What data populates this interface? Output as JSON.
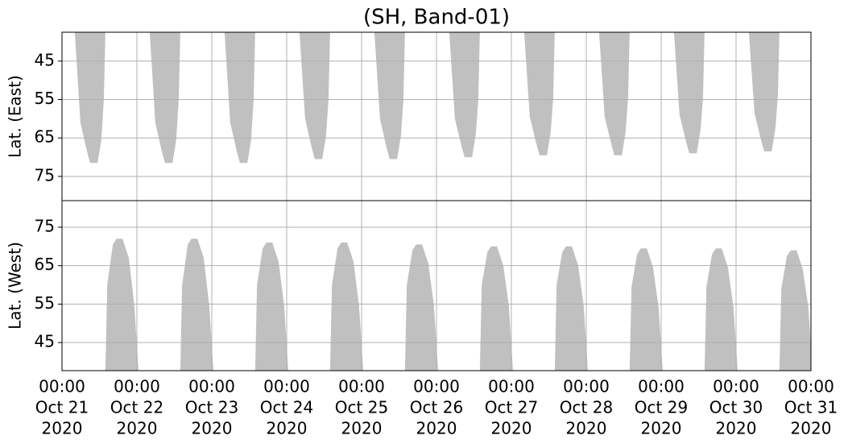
{
  "chart_data": [
    {
      "type": "polygon",
      "title": "(SH, Band-01)",
      "ylabel": "Lat. (East)",
      "y_inverted": true,
      "grid": true,
      "xlim": [
        "2020-10-21T00:00",
        "2020-10-31T00:00"
      ],
      "xticks": [
        "2020-10-21T00:00",
        "2020-10-22T00:00",
        "2020-10-23T00:00",
        "2020-10-24T00:00",
        "2020-10-25T00:00",
        "2020-10-26T00:00",
        "2020-10-27T00:00",
        "2020-10-28T00:00",
        "2020-10-29T00:00",
        "2020-10-30T00:00",
        "2020-10-31T00:00"
      ],
      "ylim": [
        37.5,
        81.3
      ],
      "yticks": [
        45,
        55,
        65,
        75
      ],
      "series": [
        {
          "color": "#c0c0c0",
          "x": [
            "2020-10-21T04:06",
            "2020-10-21T05:54",
            "2020-10-21T08:00",
            "2020-10-21T09:00",
            "2020-10-21T11:24",
            "2020-10-21T12:36",
            "2020-10-21T13:24",
            "2020-10-21T13:54"
          ],
          "values": [
            37.5,
            61,
            68.5,
            71.5,
            71.5,
            65.5,
            55,
            37.5
          ]
        },
        {
          "color": "#c0c0c0",
          "x": [
            "2020-10-22T04:06",
            "2020-10-22T05:54",
            "2020-10-22T08:00",
            "2020-10-22T09:00",
            "2020-10-22T11:24",
            "2020-10-22T12:36",
            "2020-10-22T13:24",
            "2020-10-22T13:54"
          ],
          "values": [
            37.5,
            61,
            68.5,
            71.5,
            71.5,
            65.5,
            55,
            37.5
          ]
        },
        {
          "color": "#c0c0c0",
          "x": [
            "2020-10-23T04:06",
            "2020-10-23T05:54",
            "2020-10-23T08:00",
            "2020-10-23T09:00",
            "2020-10-23T11:24",
            "2020-10-23T12:36",
            "2020-10-23T13:24",
            "2020-10-23T13:54"
          ],
          "values": [
            37.5,
            61,
            68.5,
            71.5,
            71.5,
            65.5,
            55,
            37.5
          ]
        },
        {
          "color": "#c0c0c0",
          "x": [
            "2020-10-24T04:06",
            "2020-10-24T05:54",
            "2020-10-24T08:00",
            "2020-10-24T09:00",
            "2020-10-24T11:24",
            "2020-10-24T12:36",
            "2020-10-24T13:24",
            "2020-10-24T13:54"
          ],
          "values": [
            37.5,
            60,
            67.5,
            70.5,
            70.5,
            64.5,
            55,
            37.5
          ]
        },
        {
          "color": "#c0c0c0",
          "x": [
            "2020-10-25T04:06",
            "2020-10-25T05:54",
            "2020-10-25T08:00",
            "2020-10-25T09:00",
            "2020-10-25T11:24",
            "2020-10-25T12:36",
            "2020-10-25T13:24",
            "2020-10-25T13:54"
          ],
          "values": [
            37.5,
            60,
            67.5,
            70.5,
            70.5,
            64.5,
            55,
            37.5
          ]
        },
        {
          "color": "#c0c0c0",
          "x": [
            "2020-10-26T04:06",
            "2020-10-26T05:54",
            "2020-10-26T08:00",
            "2020-10-26T09:00",
            "2020-10-26T11:24",
            "2020-10-26T12:36",
            "2020-10-26T13:24",
            "2020-10-26T13:54"
          ],
          "values": [
            37.5,
            60,
            67,
            70,
            70,
            64,
            55,
            37.5
          ]
        },
        {
          "color": "#c0c0c0",
          "x": [
            "2020-10-27T04:06",
            "2020-10-27T05:54",
            "2020-10-27T08:00",
            "2020-10-27T09:00",
            "2020-10-27T11:24",
            "2020-10-27T12:36",
            "2020-10-27T13:24",
            "2020-10-27T13:54"
          ],
          "values": [
            37.5,
            59.5,
            66.5,
            69.5,
            69.5,
            63.5,
            54.5,
            37.5
          ]
        },
        {
          "color": "#c0c0c0",
          "x": [
            "2020-10-28T04:06",
            "2020-10-28T05:54",
            "2020-10-28T08:00",
            "2020-10-28T09:00",
            "2020-10-28T11:24",
            "2020-10-28T12:36",
            "2020-10-28T13:24",
            "2020-10-28T13:54"
          ],
          "values": [
            37.5,
            59.5,
            66.5,
            69.5,
            69.5,
            63.5,
            54.5,
            37.5
          ]
        },
        {
          "color": "#c0c0c0",
          "x": [
            "2020-10-29T04:06",
            "2020-10-29T05:54",
            "2020-10-29T08:00",
            "2020-10-29T09:00",
            "2020-10-29T11:24",
            "2020-10-29T12:36",
            "2020-10-29T13:24",
            "2020-10-29T13:54"
          ],
          "values": [
            37.5,
            59,
            66,
            69,
            69,
            63,
            54.5,
            37.5
          ]
        },
        {
          "color": "#c0c0c0",
          "x": [
            "2020-10-30T04:06",
            "2020-10-30T05:54",
            "2020-10-30T08:00",
            "2020-10-30T09:00",
            "2020-10-30T11:24",
            "2020-10-30T12:36",
            "2020-10-30T13:24",
            "2020-10-30T13:54"
          ],
          "values": [
            37.5,
            58.5,
            65.5,
            68.5,
            68.5,
            62.5,
            54,
            37.5
          ]
        }
      ]
    },
    {
      "type": "polygon",
      "ylabel": "Lat. (West)",
      "y_inverted": false,
      "grid": true,
      "xlim": [
        "2020-10-21T00:00",
        "2020-10-31T00:00"
      ],
      "xticks": [
        {
          "value": "2020-10-21T00:00",
          "label": [
            "00:00",
            "Oct 21",
            "2020"
          ]
        },
        {
          "value": "2020-10-22T00:00",
          "label": [
            "00:00",
            "Oct 22",
            "2020"
          ]
        },
        {
          "value": "2020-10-23T00:00",
          "label": [
            "00:00",
            "Oct 23",
            "2020"
          ]
        },
        {
          "value": "2020-10-24T00:00",
          "label": [
            "00:00",
            "Oct 24",
            "2020"
          ]
        },
        {
          "value": "2020-10-25T00:00",
          "label": [
            "00:00",
            "Oct 25",
            "2020"
          ]
        },
        {
          "value": "2020-10-26T00:00",
          "label": [
            "00:00",
            "Oct 26",
            "2020"
          ]
        },
        {
          "value": "2020-10-27T00:00",
          "label": [
            "00:00",
            "Oct 27",
            "2020"
          ]
        },
        {
          "value": "2020-10-28T00:00",
          "label": [
            "00:00",
            "Oct 28",
            "2020"
          ]
        },
        {
          "value": "2020-10-29T00:00",
          "label": [
            "00:00",
            "Oct 29",
            "2020"
          ]
        },
        {
          "value": "2020-10-30T00:00",
          "label": [
            "00:00",
            "Oct 30",
            "2020"
          ]
        },
        {
          "value": "2020-10-31T00:00",
          "label": [
            "00:00",
            "Oct 31",
            "2020"
          ]
        }
      ],
      "ylim": [
        37.7,
        81.9
      ],
      "yticks": [
        45,
        55,
        65,
        75
      ],
      "series": [
        {
          "color": "#c0c0c0",
          "x": [
            "2020-10-21T13:54",
            "2020-10-21T14:30",
            "2020-10-21T16:18",
            "2020-10-21T17:30",
            "2020-10-21T19:24",
            "2020-10-21T21:24",
            "2020-10-21T23:12",
            "2020-10-22T00:30"
          ],
          "values": [
            37.7,
            60,
            70.5,
            72,
            72,
            67,
            54.5,
            37.7
          ]
        },
        {
          "color": "#c0c0c0",
          "x": [
            "2020-10-22T13:54",
            "2020-10-22T14:30",
            "2020-10-22T16:18",
            "2020-10-22T17:30",
            "2020-10-22T19:24",
            "2020-10-22T21:24",
            "2020-10-22T23:12",
            "2020-10-23T00:30"
          ],
          "values": [
            37.7,
            60,
            70.5,
            72,
            72,
            67,
            54.5,
            37.7
          ]
        },
        {
          "color": "#c0c0c0",
          "x": [
            "2020-10-23T13:54",
            "2020-10-23T14:30",
            "2020-10-23T16:18",
            "2020-10-23T17:30",
            "2020-10-23T19:24",
            "2020-10-23T21:24",
            "2020-10-23T23:12",
            "2020-10-24T00:30"
          ],
          "values": [
            37.7,
            60,
            69.5,
            71,
            71,
            66,
            54.5,
            37.7
          ]
        },
        {
          "color": "#c0c0c0",
          "x": [
            "2020-10-24T13:54",
            "2020-10-24T14:30",
            "2020-10-24T16:18",
            "2020-10-24T17:30",
            "2020-10-24T19:24",
            "2020-10-24T21:24",
            "2020-10-24T23:12",
            "2020-10-25T00:30"
          ],
          "values": [
            37.7,
            60,
            69.5,
            71,
            71,
            66,
            54.5,
            37.7
          ]
        },
        {
          "color": "#c0c0c0",
          "x": [
            "2020-10-25T13:54",
            "2020-10-25T14:30",
            "2020-10-25T16:18",
            "2020-10-25T17:30",
            "2020-10-25T19:24",
            "2020-10-25T21:24",
            "2020-10-25T23:12",
            "2020-10-26T00:30"
          ],
          "values": [
            37.7,
            60,
            69,
            70.5,
            70.5,
            65.5,
            54.5,
            37.7
          ]
        },
        {
          "color": "#c0c0c0",
          "x": [
            "2020-10-26T13:54",
            "2020-10-26T14:30",
            "2020-10-26T16:18",
            "2020-10-26T17:30",
            "2020-10-26T19:24",
            "2020-10-26T21:24",
            "2020-10-26T23:12",
            "2020-10-27T00:30"
          ],
          "values": [
            37.7,
            60,
            68.5,
            70,
            70,
            65,
            54.5,
            37.7
          ]
        },
        {
          "color": "#c0c0c0",
          "x": [
            "2020-10-27T13:54",
            "2020-10-27T14:30",
            "2020-10-27T16:18",
            "2020-10-27T17:30",
            "2020-10-27T19:24",
            "2020-10-27T21:24",
            "2020-10-27T23:12",
            "2020-10-28T00:30"
          ],
          "values": [
            37.7,
            60,
            68.5,
            70,
            70,
            65,
            54.5,
            37.7
          ]
        },
        {
          "color": "#c0c0c0",
          "x": [
            "2020-10-28T13:54",
            "2020-10-28T14:30",
            "2020-10-28T16:18",
            "2020-10-28T17:30",
            "2020-10-28T19:24",
            "2020-10-28T21:24",
            "2020-10-28T23:12",
            "2020-10-29T00:30"
          ],
          "values": [
            37.7,
            59.5,
            68,
            69.5,
            69.5,
            64.5,
            54,
            37.7
          ]
        },
        {
          "color": "#c0c0c0",
          "x": [
            "2020-10-29T13:54",
            "2020-10-29T14:30",
            "2020-10-29T16:18",
            "2020-10-29T17:30",
            "2020-10-29T19:24",
            "2020-10-29T21:24",
            "2020-10-29T23:12",
            "2020-10-30T00:30"
          ],
          "values": [
            37.7,
            59.5,
            68,
            69.5,
            69.5,
            64.5,
            54,
            37.7
          ]
        },
        {
          "color": "#c0c0c0",
          "x": [
            "2020-10-30T13:54",
            "2020-10-30T14:30",
            "2020-10-30T16:18",
            "2020-10-30T17:30",
            "2020-10-30T19:24",
            "2020-10-30T21:24",
            "2020-10-30T23:12",
            "2020-10-31T00:30"
          ],
          "values": [
            37.7,
            59,
            67.5,
            69,
            69,
            64,
            54,
            37.7
          ]
        }
      ]
    }
  ]
}
